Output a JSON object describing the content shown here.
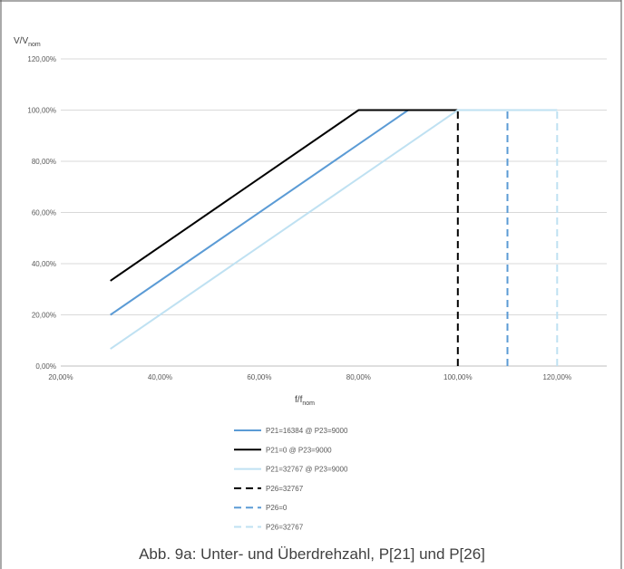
{
  "chart_data": {
    "type": "line",
    "ylabel": "V/V",
    "ylabel_sub": "nom",
    "xlabel": "f/f",
    "xlabel_sub": "nom",
    "xlim": [
      20,
      130
    ],
    "ylim": [
      0,
      120
    ],
    "x_ticks": [
      20,
      40,
      60,
      80,
      100,
      120
    ],
    "y_ticks": [
      0,
      20,
      40,
      60,
      80,
      100,
      120
    ],
    "x_tick_labels": [
      "20,00%",
      "40,00%",
      "60,00%",
      "80,00%",
      "100,00%",
      "120,00%"
    ],
    "y_tick_labels": [
      "0,00%",
      "20,00%",
      "40,00%",
      "60,00%",
      "80,00%",
      "100,00%",
      "120,00%"
    ],
    "grid": "horizontal",
    "legend_position": "bottom",
    "series": [
      {
        "name": "P21=16384 @ P23=9000",
        "color": "#5b9bd5",
        "dashed": false,
        "points": [
          [
            30,
            20
          ],
          [
            90,
            100
          ],
          [
            110,
            100
          ]
        ]
      },
      {
        "name": "P21=0 @ P23=9000",
        "color": "#000000",
        "dashed": false,
        "points": [
          [
            30,
            33.3
          ],
          [
            80,
            100
          ],
          [
            100,
            100
          ]
        ]
      },
      {
        "name": "P21=32767 @ P23=9000",
        "color": "#bfe1f2",
        "dashed": false,
        "points": [
          [
            30,
            6.7
          ],
          [
            100,
            100
          ],
          [
            120,
            100
          ]
        ]
      },
      {
        "name": "P26=32767",
        "color": "#000000",
        "dashed": true,
        "points": [
          [
            100,
            0
          ],
          [
            100,
            100
          ]
        ]
      },
      {
        "name": "P26=0",
        "color": "#5b9bd5",
        "dashed": true,
        "points": [
          [
            110,
            0
          ],
          [
            110,
            100
          ]
        ]
      },
      {
        "name": "P26=32767",
        "color": "#bfe1f2",
        "dashed": true,
        "points": [
          [
            120,
            0
          ],
          [
            120,
            100
          ]
        ]
      }
    ]
  },
  "caption": "Abb. 9a: Unter- und Überdrehzahl, P[21] und P[26]"
}
